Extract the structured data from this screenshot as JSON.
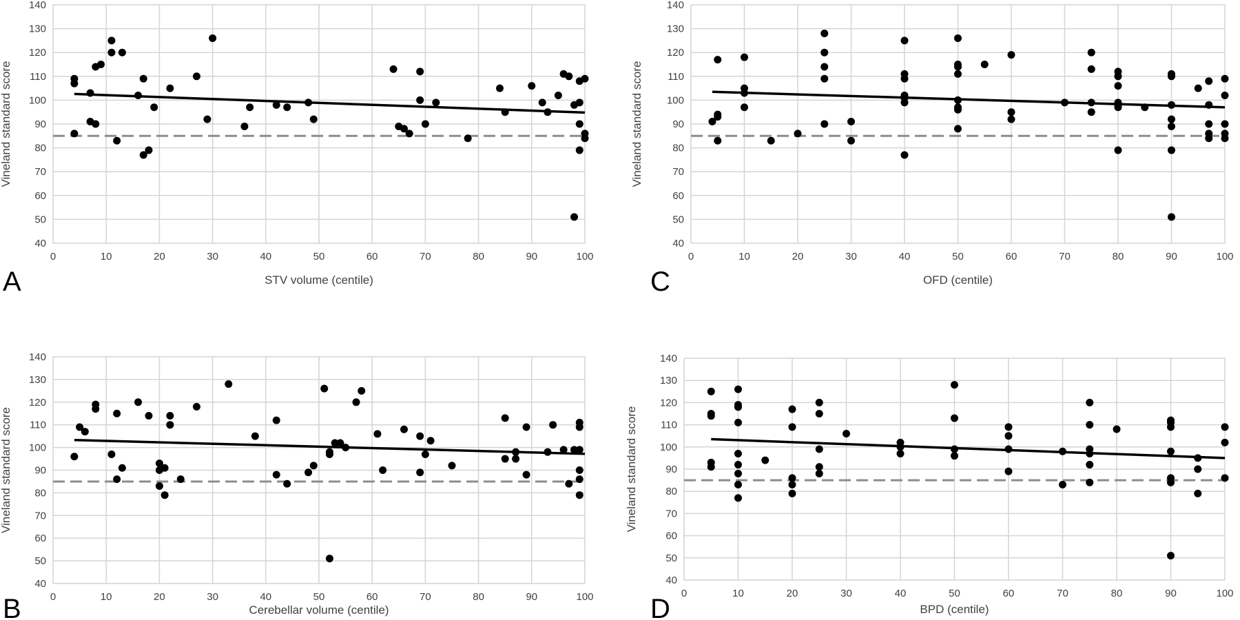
{
  "colors": {
    "grid": "#d4d4d4",
    "point": "#000000",
    "trend": "#000000",
    "reference": "#8c8c8c",
    "text": "#404040"
  },
  "chart_data": [
    {
      "panel_label": "A",
      "type": "scatter",
      "xlabel": "STV volume (centile)",
      "ylabel": "Vineland standard score",
      "xlim": [
        0,
        100
      ],
      "ylim": [
        40,
        140
      ],
      "xticks": [
        0,
        10,
        20,
        30,
        40,
        50,
        60,
        70,
        80,
        90,
        100
      ],
      "yticks": [
        40,
        50,
        60,
        70,
        80,
        90,
        100,
        110,
        120,
        130,
        140
      ],
      "grid": true,
      "reference_line": {
        "y": 85,
        "style": "dashed"
      },
      "trend_line": {
        "x": [
          4,
          100
        ],
        "y": [
          102.6,
          94.8
        ]
      },
      "points": [
        [
          4,
          109
        ],
        [
          4,
          107
        ],
        [
          4,
          86
        ],
        [
          7,
          103
        ],
        [
          7,
          91
        ],
        [
          8,
          114
        ],
        [
          8,
          90
        ],
        [
          9,
          115
        ],
        [
          11,
          125
        ],
        [
          11,
          120
        ],
        [
          12,
          83
        ],
        [
          13,
          120
        ],
        [
          16,
          102
        ],
        [
          17,
          109
        ],
        [
          17,
          77
        ],
        [
          18,
          79
        ],
        [
          19,
          97
        ],
        [
          22,
          105
        ],
        [
          27,
          110
        ],
        [
          29,
          92
        ],
        [
          30,
          126
        ],
        [
          36,
          89
        ],
        [
          37,
          97
        ],
        [
          42,
          98
        ],
        [
          44,
          97
        ],
        [
          48,
          99
        ],
        [
          49,
          92
        ],
        [
          64,
          113
        ],
        [
          65,
          89
        ],
        [
          66,
          88
        ],
        [
          67,
          86
        ],
        [
          69,
          112
        ],
        [
          69,
          100
        ],
        [
          70,
          90
        ],
        [
          72,
          99
        ],
        [
          78,
          84
        ],
        [
          84,
          105
        ],
        [
          85,
          95
        ],
        [
          90,
          106
        ],
        [
          92,
          99
        ],
        [
          93,
          95
        ],
        [
          95,
          102
        ],
        [
          96,
          111
        ],
        [
          97,
          110
        ],
        [
          98,
          98
        ],
        [
          98,
          51
        ],
        [
          99,
          108
        ],
        [
          99,
          99
        ],
        [
          99,
          90
        ],
        [
          99,
          79
        ],
        [
          100,
          109
        ],
        [
          100,
          86
        ],
        [
          100,
          84
        ]
      ]
    },
    {
      "panel_label": "C",
      "type": "scatter",
      "xlabel": "OFD (centile)",
      "ylabel": "Vineland standard score",
      "xlim": [
        0,
        100
      ],
      "ylim": [
        40,
        140
      ],
      "xticks": [
        0,
        10,
        20,
        30,
        40,
        50,
        60,
        70,
        80,
        90,
        100
      ],
      "yticks": [
        40,
        50,
        60,
        70,
        80,
        90,
        100,
        110,
        120,
        130,
        140
      ],
      "grid": true,
      "reference_line": {
        "y": 85,
        "style": "dashed"
      },
      "trend_line": {
        "x": [
          4,
          100
        ],
        "y": [
          103.5,
          97
        ]
      },
      "points": [
        [
          4,
          91
        ],
        [
          5,
          117
        ],
        [
          5,
          94
        ],
        [
          5,
          93
        ],
        [
          5,
          83
        ],
        [
          10,
          118
        ],
        [
          10,
          105
        ],
        [
          10,
          103
        ],
        [
          10,
          97
        ],
        [
          15,
          83
        ],
        [
          20,
          86
        ],
        [
          25,
          128
        ],
        [
          25,
          120
        ],
        [
          25,
          114
        ],
        [
          25,
          109
        ],
        [
          25,
          90
        ],
        [
          30,
          91
        ],
        [
          30,
          83
        ],
        [
          40,
          125
        ],
        [
          40,
          111
        ],
        [
          40,
          109
        ],
        [
          40,
          102
        ],
        [
          40,
          101
        ],
        [
          40,
          99
        ],
        [
          40,
          77
        ],
        [
          50,
          126
        ],
        [
          50,
          115
        ],
        [
          50,
          114
        ],
        [
          50,
          111
        ],
        [
          50,
          100
        ],
        [
          50,
          97
        ],
        [
          50,
          96
        ],
        [
          50,
          88
        ],
        [
          55,
          115
        ],
        [
          60,
          119
        ],
        [
          60,
          95
        ],
        [
          60,
          92
        ],
        [
          70,
          99
        ],
        [
          75,
          120
        ],
        [
          75,
          113
        ],
        [
          75,
          99
        ],
        [
          75,
          95
        ],
        [
          80,
          112
        ],
        [
          80,
          110
        ],
        [
          80,
          106
        ],
        [
          80,
          99
        ],
        [
          80,
          98
        ],
        [
          80,
          97
        ],
        [
          80,
          79
        ],
        [
          85,
          97
        ],
        [
          90,
          111
        ],
        [
          90,
          110
        ],
        [
          90,
          98
        ],
        [
          90,
          92
        ],
        [
          90,
          89
        ],
        [
          90,
          79
        ],
        [
          90,
          51
        ],
        [
          95,
          105
        ],
        [
          97,
          108
        ],
        [
          97,
          98
        ],
        [
          97,
          90
        ],
        [
          97,
          86
        ],
        [
          97,
          84
        ],
        [
          100,
          109
        ],
        [
          100,
          102
        ],
        [
          100,
          90
        ],
        [
          100,
          86
        ],
        [
          100,
          84
        ]
      ]
    },
    {
      "panel_label": "B",
      "type": "scatter",
      "xlabel": "Cerebellar volume (centile)",
      "ylabel": "Vineland standard score",
      "xlim": [
        0,
        100
      ],
      "ylim": [
        40,
        140
      ],
      "xticks": [
        0,
        10,
        20,
        30,
        40,
        50,
        60,
        70,
        80,
        90,
        100
      ],
      "yticks": [
        40,
        50,
        60,
        70,
        80,
        90,
        100,
        110,
        120,
        130,
        140
      ],
      "grid": true,
      "reference_line": {
        "y": 85,
        "style": "dashed"
      },
      "trend_line": {
        "x": [
          4,
          100
        ],
        "y": [
          103.3,
          97.2
        ]
      },
      "points": [
        [
          4,
          96
        ],
        [
          5,
          109
        ],
        [
          6,
          107
        ],
        [
          8,
          119
        ],
        [
          8,
          117
        ],
        [
          11,
          97
        ],
        [
          12,
          115
        ],
        [
          12,
          86
        ],
        [
          13,
          91
        ],
        [
          16,
          120
        ],
        [
          18,
          114
        ],
        [
          20,
          93
        ],
        [
          20,
          90
        ],
        [
          20,
          83
        ],
        [
          21,
          91
        ],
        [
          21,
          79
        ],
        [
          22,
          114
        ],
        [
          22,
          110
        ],
        [
          24,
          86
        ],
        [
          27,
          118
        ],
        [
          33,
          128
        ],
        [
          38,
          105
        ],
        [
          42,
          112
        ],
        [
          42,
          88
        ],
        [
          44,
          84
        ],
        [
          48,
          89
        ],
        [
          49,
          92
        ],
        [
          51,
          126
        ],
        [
          52,
          98
        ],
        [
          52,
          97
        ],
        [
          52,
          51
        ],
        [
          53,
          102
        ],
        [
          54,
          102
        ],
        [
          55,
          100
        ],
        [
          57,
          120
        ],
        [
          58,
          125
        ],
        [
          61,
          106
        ],
        [
          62,
          90
        ],
        [
          66,
          108
        ],
        [
          69,
          105
        ],
        [
          69,
          89
        ],
        [
          70,
          97
        ],
        [
          71,
          103
        ],
        [
          75,
          92
        ],
        [
          85,
          113
        ],
        [
          85,
          95
        ],
        [
          87,
          98
        ],
        [
          87,
          95
        ],
        [
          89,
          109
        ],
        [
          89,
          88
        ],
        [
          93,
          98
        ],
        [
          94,
          110
        ],
        [
          96,
          99
        ],
        [
          97,
          84
        ],
        [
          98,
          99
        ],
        [
          99,
          111
        ],
        [
          99,
          109
        ],
        [
          99,
          99
        ],
        [
          99,
          90
        ],
        [
          99,
          86
        ],
        [
          99,
          79
        ]
      ]
    },
    {
      "panel_label": "D",
      "type": "scatter",
      "xlabel": "BPD (centile)",
      "ylabel": "Vineland standard score",
      "xlim": [
        0,
        100
      ],
      "ylim": [
        40,
        140
      ],
      "xticks": [
        0,
        10,
        20,
        30,
        40,
        50,
        60,
        70,
        80,
        90,
        100
      ],
      "yticks": [
        40,
        50,
        60,
        70,
        80,
        90,
        100,
        110,
        120,
        130,
        140
      ],
      "grid": true,
      "reference_line": {
        "y": 85,
        "style": "dashed"
      },
      "trend_line": {
        "x": [
          5,
          100
        ],
        "y": [
          103.5,
          95
        ]
      },
      "points": [
        [
          5,
          125
        ],
        [
          5,
          115
        ],
        [
          5,
          114
        ],
        [
          5,
          93
        ],
        [
          5,
          91
        ],
        [
          10,
          126
        ],
        [
          10,
          119
        ],
        [
          10,
          118
        ],
        [
          10,
          111
        ],
        [
          10,
          97
        ],
        [
          10,
          92
        ],
        [
          10,
          88
        ],
        [
          10,
          83
        ],
        [
          10,
          77
        ],
        [
          15,
          94
        ],
        [
          20,
          117
        ],
        [
          20,
          109
        ],
        [
          20,
          86
        ],
        [
          20,
          83
        ],
        [
          20,
          79
        ],
        [
          25,
          120
        ],
        [
          25,
          115
        ],
        [
          25,
          99
        ],
        [
          25,
          91
        ],
        [
          25,
          88
        ],
        [
          30,
          106
        ],
        [
          40,
          102
        ],
        [
          40,
          100
        ],
        [
          40,
          97
        ],
        [
          50,
          128
        ],
        [
          50,
          113
        ],
        [
          50,
          99
        ],
        [
          50,
          96
        ],
        [
          60,
          109
        ],
        [
          60,
          105
        ],
        [
          60,
          99
        ],
        [
          60,
          89
        ],
        [
          70,
          98
        ],
        [
          70,
          83
        ],
        [
          75,
          120
        ],
        [
          75,
          110
        ],
        [
          75,
          99
        ],
        [
          75,
          97
        ],
        [
          75,
          92
        ],
        [
          75,
          84
        ],
        [
          80,
          108
        ],
        [
          90,
          112
        ],
        [
          90,
          111
        ],
        [
          90,
          109
        ],
        [
          90,
          98
        ],
        [
          90,
          86
        ],
        [
          90,
          84
        ],
        [
          90,
          51
        ],
        [
          95,
          95
        ],
        [
          95,
          90
        ],
        [
          95,
          79
        ],
        [
          100,
          109
        ],
        [
          100,
          102
        ],
        [
          100,
          86
        ]
      ]
    }
  ]
}
